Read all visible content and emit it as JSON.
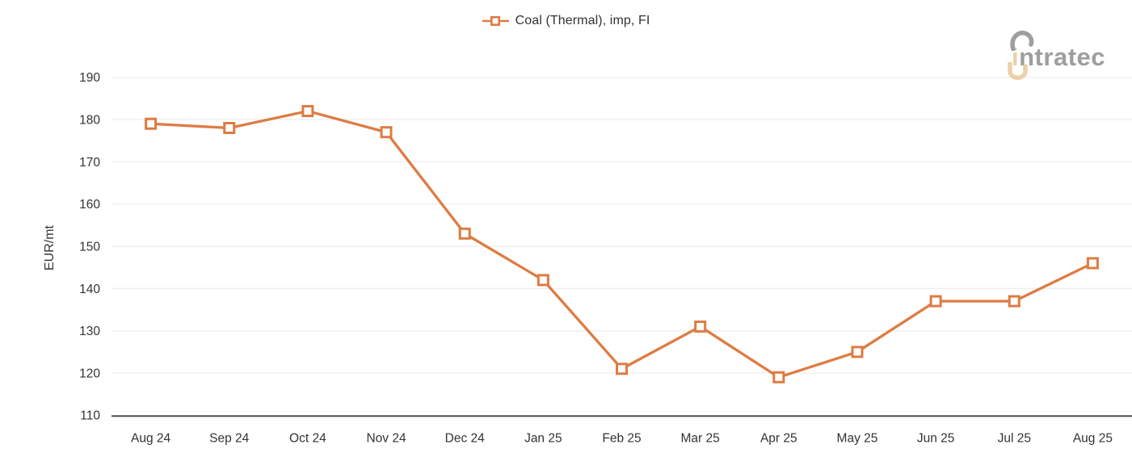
{
  "logo": {
    "name": "intratec",
    "first_letter": "i",
    "rest": "ntratec",
    "gray": "#9e9e9e",
    "tan": "#ecd0a7"
  },
  "chart_data": {
    "type": "line",
    "title": "",
    "categories": [
      "Aug 24",
      "Sep 24",
      "Oct 24",
      "Nov 24",
      "Dec 24",
      "Jan 25",
      "Feb 25",
      "Mar 25",
      "Apr 25",
      "May 25",
      "Jun 25",
      "Jul 25",
      "Aug 25"
    ],
    "series": [
      {
        "name": "Coal (Thermal), imp, FI",
        "color": "#DE7C42",
        "marker": "open-square",
        "values": [
          179,
          178,
          182,
          177,
          153,
          142,
          121,
          131,
          119,
          125,
          137,
          137,
          146
        ]
      }
    ],
    "xlabel": "",
    "ylabel": "EUR/mt",
    "ylim": [
      110,
      190
    ],
    "ytick_step": 10,
    "yticks": [
      110,
      120,
      130,
      140,
      150,
      160,
      170,
      180,
      190
    ],
    "grid": true,
    "legend_position": "top-center",
    "colors": {
      "grid": "#efefef",
      "axis": "#4d4d4d",
      "tick_text": "#333333"
    }
  }
}
